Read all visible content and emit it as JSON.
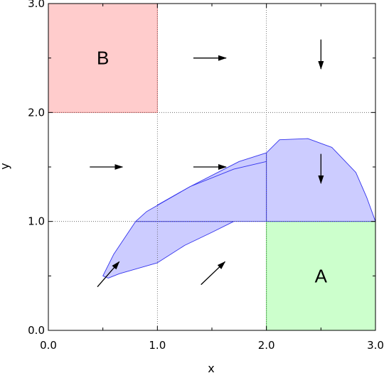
{
  "chart_data": {
    "type": "diagram",
    "xlabel": "x",
    "ylabel": "y",
    "xlim": [
      0.0,
      3.0
    ],
    "ylim": [
      0.0,
      3.0
    ],
    "x_ticks": [
      0.0,
      1.0,
      2.0,
      3.0
    ],
    "y_ticks": [
      0.0,
      1.0,
      2.0,
      3.0
    ],
    "x_tick_labels": [
      "0.0",
      "1.0",
      "2.0",
      "3.0"
    ],
    "y_tick_labels": [
      "0.0",
      "1.0",
      "2.0",
      "3.0"
    ],
    "minor_ticks": [
      0.5,
      1.5,
      2.5
    ],
    "grid": "dotted at 1.0 and 2.0",
    "regions": [
      {
        "label": "A",
        "x": [
          2.0,
          3.0
        ],
        "y": [
          0.0,
          1.0
        ],
        "fill": "#ccffcc",
        "stroke": "#66dd66"
      },
      {
        "label": "B",
        "x": [
          0.0,
          1.0
        ],
        "y": [
          2.0,
          3.0
        ],
        "fill": "#ffcccc",
        "stroke": "#ee8888"
      }
    ],
    "vector_field": [
      {
        "from": [
          0.45,
          0.4
        ],
        "to": [
          0.65,
          0.63
        ]
      },
      {
        "from": [
          1.4,
          0.42
        ],
        "to": [
          1.62,
          0.63
        ]
      },
      {
        "from": [
          0.38,
          1.5
        ],
        "to": [
          0.68,
          1.5
        ]
      },
      {
        "from": [
          1.33,
          1.5
        ],
        "to": [
          1.63,
          1.5
        ]
      },
      {
        "from": [
          1.33,
          2.5
        ],
        "to": [
          1.63,
          2.5
        ]
      },
      {
        "from": [
          2.5,
          1.62
        ],
        "to": [
          2.5,
          1.35
        ]
      },
      {
        "from": [
          2.5,
          2.67
        ],
        "to": [
          2.5,
          2.4
        ]
      }
    ],
    "reach_set": {
      "fill": "#ccccff",
      "stroke": "#3333ee",
      "polygons": [
        [
          [
            0.5,
            0.5
          ],
          [
            0.55,
            0.48
          ],
          [
            0.65,
            0.52
          ],
          [
            1.0,
            0.62
          ],
          [
            1.25,
            0.78
          ],
          [
            1.5,
            0.9
          ],
          [
            1.7,
            1.0
          ],
          [
            0.8,
            1.0
          ],
          [
            0.6,
            0.7
          ],
          [
            0.5,
            0.5
          ]
        ],
        [
          [
            0.8,
            1.0
          ],
          [
            0.9,
            1.09
          ],
          [
            1.3,
            1.32
          ],
          [
            1.75,
            1.55
          ],
          [
            2.0,
            1.63
          ],
          [
            2.0,
            1.0
          ],
          [
            0.8,
            1.0
          ]
        ],
        [
          [
            2.0,
            1.0
          ],
          [
            2.0,
            1.63
          ],
          [
            2.12,
            1.75
          ],
          [
            2.38,
            1.76
          ],
          [
            2.6,
            1.68
          ],
          [
            2.82,
            1.45
          ],
          [
            2.92,
            1.22
          ],
          [
            3.0,
            1.0
          ],
          [
            2.0,
            1.0
          ]
        ]
      ],
      "extra_edges": [
        [
          [
            1.0,
            1.15
          ],
          [
            1.3,
            1.32
          ],
          [
            1.7,
            1.48
          ],
          [
            2.0,
            1.55
          ]
        ]
      ]
    }
  }
}
